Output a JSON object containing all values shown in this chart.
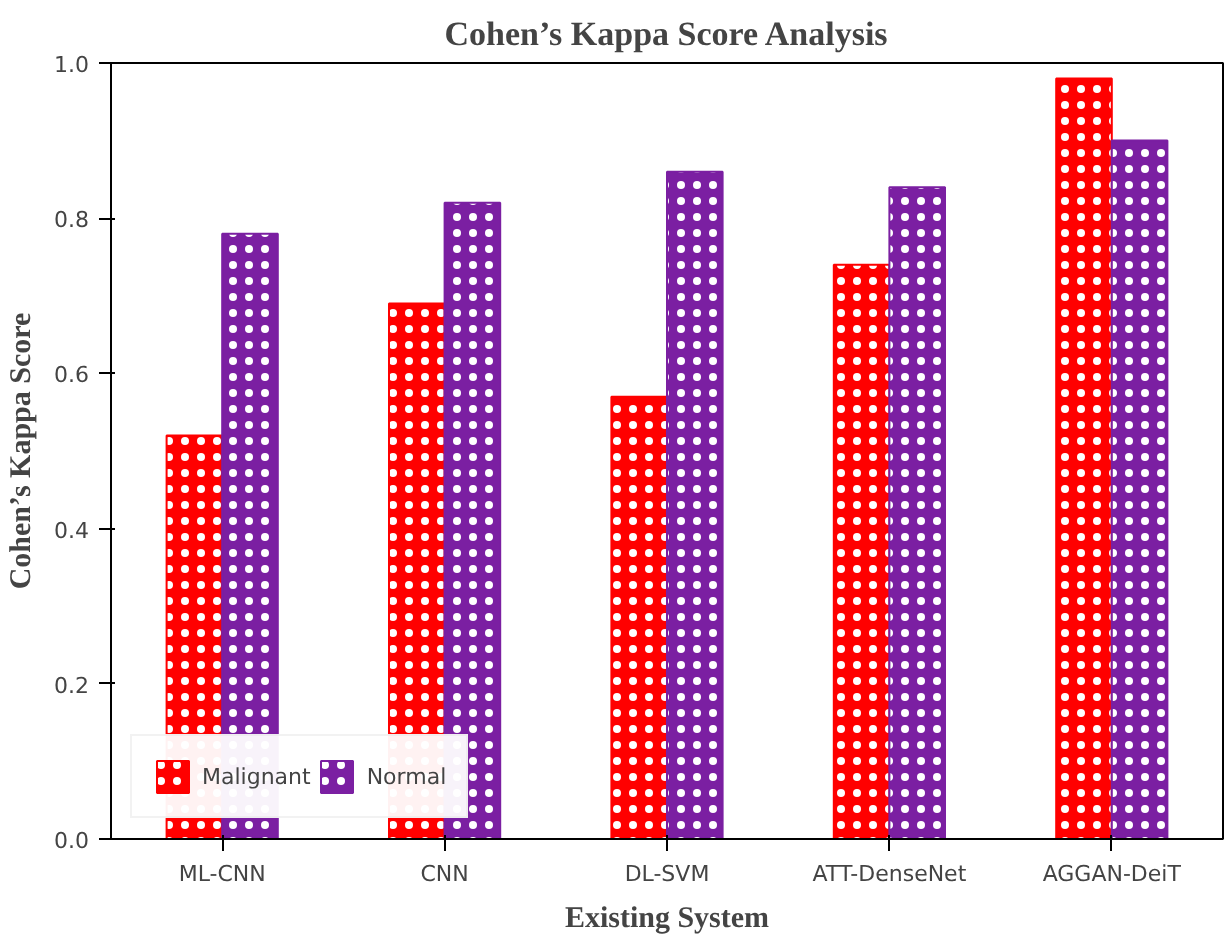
{
  "chart_data": {
    "type": "bar",
    "title": "Cohen’s Kappa Score Analysis",
    "xlabel": "Existing System",
    "ylabel": "Cohen’s Kappa Score",
    "categories": [
      "ML-CNN",
      "CNN",
      "DL-SVM",
      "ATT-DenseNet",
      "AGGAN-DeiT"
    ],
    "series": [
      {
        "name": "Malignant",
        "color": "#ff0000",
        "values": [
          0.52,
          0.69,
          0.57,
          0.74,
          0.98
        ]
      },
      {
        "name": "Normal",
        "color": "#7b1fa2",
        "values": [
          0.78,
          0.82,
          0.86,
          0.84,
          0.9
        ]
      }
    ],
    "ylim": [
      0,
      1
    ],
    "yticks": [
      {
        "value": 0,
        "label": "0.0"
      },
      {
        "value": 0.2,
        "label": "0.2"
      },
      {
        "value": 0.4,
        "label": "0.4"
      },
      {
        "value": 0.6,
        "label": "0.6"
      },
      {
        "value": 0.8,
        "label": "0.8"
      },
      {
        "value": 1,
        "label": "1.0"
      }
    ],
    "grid": false,
    "legend": "bottom left"
  }
}
